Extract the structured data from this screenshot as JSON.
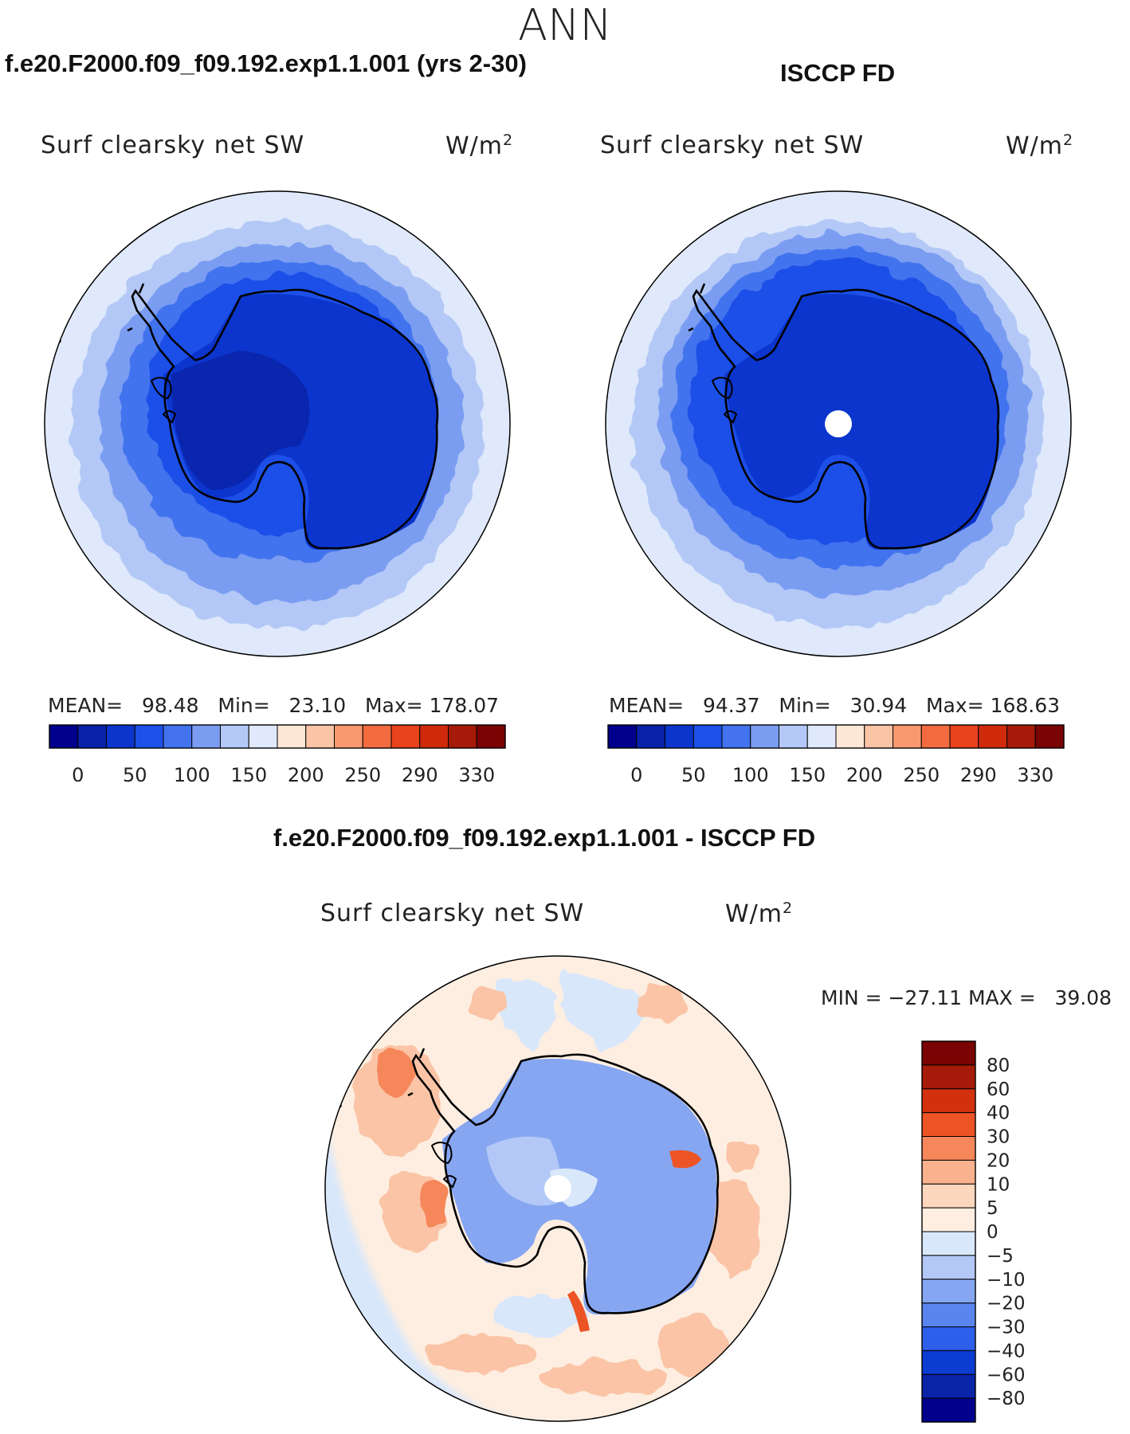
{
  "figure": {
    "suptitle": "ANN",
    "var_label": "Surf clearsky net SW",
    "units_base": "W/m",
    "units_exp": "2"
  },
  "panels": {
    "model": {
      "title": "f.e20.F2000.f09_f09.192.exp1.1.001 (yrs 2-30)",
      "mean_label": "MEAN=",
      "mean": "98.48",
      "min_label": "Min=",
      "min": "23.10",
      "max_label": "Max=",
      "max": "178.07"
    },
    "obs": {
      "title": "ISCCP FD",
      "mean_label": "MEAN=",
      "mean": "94.37",
      "min_label": "Min=",
      "min": "30.94",
      "max_label": "Max=",
      "max": "168.63"
    },
    "diff": {
      "title": "f.e20.F2000.f09_f09.192.exp1.1.001 - ISCCP FD",
      "minmax_text": "MIN = −27.11 MAX =   39.08"
    }
  },
  "chart_data": [
    {
      "type": "heatmap",
      "projection": "south-polar-stereographic",
      "title": "f.e20.F2000.f09_f09.192.exp1.1.001 (yrs 2-30)",
      "variable": "Surf clearsky net SW",
      "units": "W/m2",
      "colorbar_ticks": [
        "0",
        "50",
        "100",
        "150",
        "200",
        "250",
        "290",
        "330"
      ],
      "colorbar_colors": [
        "#00008c",
        "#0a22a8",
        "#0b35cc",
        "#1d50e8",
        "#4373ee",
        "#7a9df2",
        "#b3c8f6",
        "#dfe9fb",
        "#fde7d6",
        "#fbc4a6",
        "#f89a70",
        "#f26c3f",
        "#e8431c",
        "#cf2a0c",
        "#a51a08",
        "#7a0404"
      ],
      "stats": {
        "mean": 98.48,
        "min": 23.1,
        "max": 178.07
      }
    },
    {
      "type": "heatmap",
      "projection": "south-polar-stereographic",
      "title": "ISCCP FD",
      "variable": "Surf clearsky net SW",
      "units": "W/m2",
      "colorbar_ticks": [
        "0",
        "50",
        "100",
        "150",
        "200",
        "250",
        "290",
        "330"
      ],
      "colorbar_colors": [
        "#00008c",
        "#0a22a8",
        "#0b35cc",
        "#1d50e8",
        "#4373ee",
        "#7a9df2",
        "#b3c8f6",
        "#dfe9fb",
        "#fde7d6",
        "#fbc4a6",
        "#f89a70",
        "#f26c3f",
        "#e8431c",
        "#cf2a0c",
        "#a51a08",
        "#7a0404"
      ],
      "stats": {
        "mean": 94.37,
        "min": 30.94,
        "max": 168.63
      }
    },
    {
      "type": "heatmap",
      "projection": "south-polar-stereographic",
      "title": "f.e20.F2000.f09_f09.192.exp1.1.001 - ISCCP FD",
      "variable": "Surf clearsky net SW",
      "units": "W/m2",
      "colorbar_ticks": [
        "80",
        "60",
        "40",
        "30",
        "20",
        "10",
        "5",
        "0",
        "−5",
        "−10",
        "−20",
        "−30",
        "−40",
        "−60",
        "−80"
      ],
      "colorbar_colors": [
        "#7a0404",
        "#a51a08",
        "#d3300d",
        "#ec5426",
        "#f5875a",
        "#f9b18e",
        "#fcd6bd",
        "#fdeee1",
        "#d9e7fb",
        "#b3c8f6",
        "#86a6f2",
        "#5a84ee",
        "#2e5fea",
        "#0c3cd2",
        "#0a24a8",
        "#00008c"
      ],
      "stats": {
        "min": -27.11,
        "max": 39.08
      }
    }
  ]
}
